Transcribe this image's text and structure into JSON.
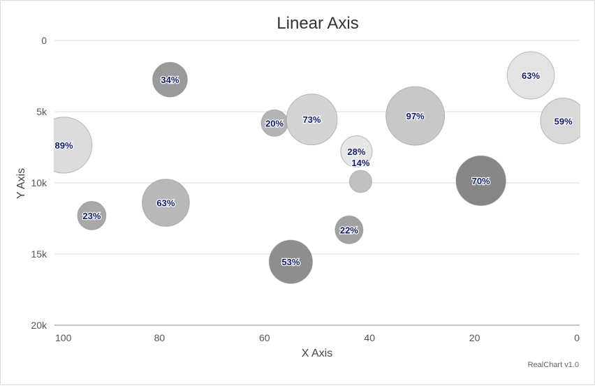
{
  "chart_data": {
    "type": "scatter",
    "subtype": "bubble",
    "title": "Linear Axis",
    "xlabel": "X Axis",
    "ylabel": "Y Axis",
    "xlim": [
      100,
      0
    ],
    "ylim": [
      0,
      20000
    ],
    "x_reversed": true,
    "y_reversed": true,
    "grid": true,
    "xticks": [
      "100",
      "80",
      "60",
      "40",
      "20",
      "0"
    ],
    "yticks": [
      "0",
      "5k",
      "10k",
      "15k",
      "20k"
    ],
    "points": [
      {
        "x": 98.2,
        "y": 7350,
        "size": 89,
        "label": "89%",
        "shade": "#dcdcdc"
      },
      {
        "x": 92.9,
        "y": 12300,
        "size": 23,
        "label": "23%",
        "shade": "#a8a8a8"
      },
      {
        "x": 78.0,
        "y": 2750,
        "size": 34,
        "label": "34%",
        "shade": "#9a9a9a"
      },
      {
        "x": 78.8,
        "y": 11400,
        "size": 63,
        "label": "63%",
        "shade": "#b8b8b8"
      },
      {
        "x": 58.1,
        "y": 5800,
        "size": 20,
        "label": "20%",
        "shade": "#b4b4b4"
      },
      {
        "x": 51.0,
        "y": 5550,
        "size": 73,
        "label": "73%",
        "shade": "#d4d4d4"
      },
      {
        "x": 55.0,
        "y": 15550,
        "size": 53,
        "label": "53%",
        "shade": "#8e8e8e"
      },
      {
        "x": 42.5,
        "y": 7800,
        "size": 28,
        "label": "28%",
        "shade": "#e6e6e6"
      },
      {
        "x": 41.7,
        "y": 9900,
        "size": 14,
        "label": "14%",
        "shade": "#c0c0c0"
      },
      {
        "x": 43.9,
        "y": 13300,
        "size": 22,
        "label": "22%",
        "shade": "#a2a2a2"
      },
      {
        "x": 31.3,
        "y": 5300,
        "size": 97,
        "label": "97%",
        "shade": "#c8c8c8"
      },
      {
        "x": 18.8,
        "y": 9850,
        "size": 70,
        "label": "70%",
        "shade": "#868686"
      },
      {
        "x": 9.3,
        "y": 2450,
        "size": 63,
        "label": "63%",
        "shade": "#e3e3e3"
      },
      {
        "x": 3.1,
        "y": 5650,
        "size": 59,
        "label": "59%",
        "shade": "#d9d9d9"
      }
    ]
  },
  "credit": "RealChart v1.0"
}
